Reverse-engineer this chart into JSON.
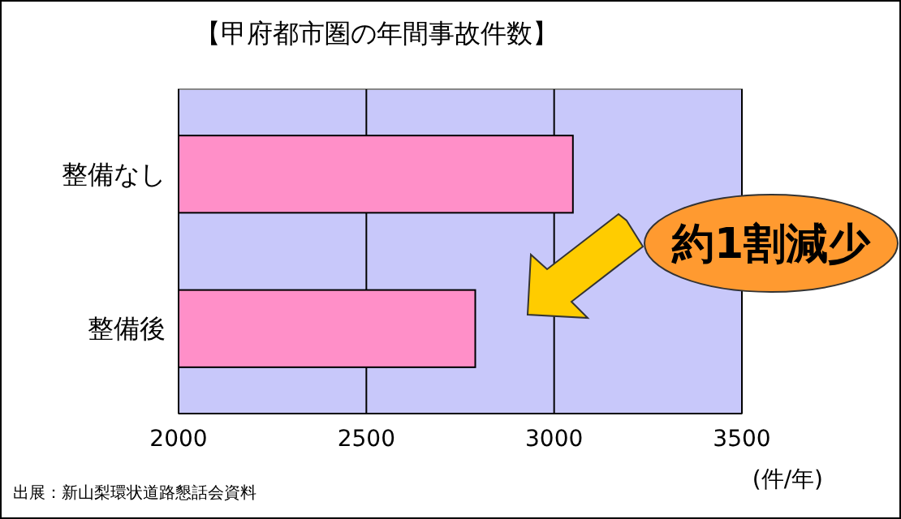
{
  "chart_data": {
    "type": "bar",
    "orientation": "horizontal",
    "title": "【甲府都市圏の年間事故件数】",
    "categories": [
      "整備なし",
      "整備後"
    ],
    "values": [
      3050,
      2790
    ],
    "color": "#ff8fc8",
    "xlim": [
      2000,
      3500
    ],
    "xticks": [
      2000,
      2500,
      3000,
      3500
    ],
    "grid": "x",
    "xlabel": "(件/年)",
    "annotations": [
      "約1割減少",
      "出展：新山梨環状道路懇話会資料"
    ]
  }
}
